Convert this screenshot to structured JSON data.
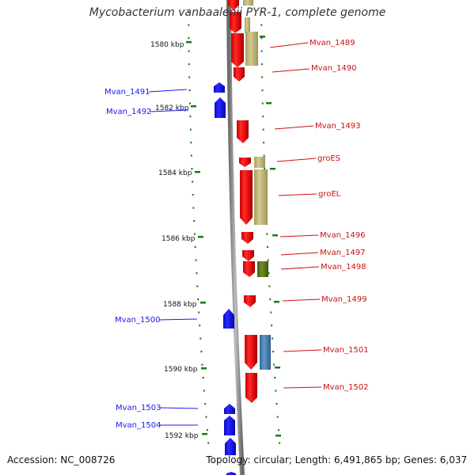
{
  "title": "Mycobacterium vanbaalenii PYR-1, complete genome",
  "footer": {
    "accession": "Accession: NC_008726",
    "topology": "Topology: circular; Length: 6,491,865 bp; Genes: 6,037"
  },
  "colors": {
    "forward_gene": "#ee1111",
    "reverse_gene": "#1a1aee",
    "left_label": "#1a1aee",
    "right_label": "#cc1111",
    "feature_tan": "#bdb57a",
    "feature_green": "#5a7a1a",
    "feature_steel": "#4a7fb0",
    "tick": "#1a7a1a",
    "backbone": "#888888"
  },
  "scale": {
    "unit": "kbp",
    "labels": [
      "1580 kbp",
      "1582 kbp",
      "1584 kbp",
      "1586 kbp",
      "1588 kbp",
      "1590 kbp",
      "1592 kbp"
    ]
  },
  "genes_right": [
    {
      "name": "Mvan_1489"
    },
    {
      "name": "Mvan_1490"
    },
    {
      "name": "Mvan_1493"
    },
    {
      "name": "groES"
    },
    {
      "name": "groEL"
    },
    {
      "name": "Mvan_1496"
    },
    {
      "name": "Mvan_1497"
    },
    {
      "name": "Mvan_1498"
    },
    {
      "name": "Mvan_1499"
    },
    {
      "name": "Mvan_1501"
    },
    {
      "name": "Mvan_1502"
    }
  ],
  "genes_left": [
    {
      "name": "Mvan_1491"
    },
    {
      "name": "Mvan_1492"
    },
    {
      "name": "Mvan_1500"
    },
    {
      "name": "Mvan_1503"
    },
    {
      "name": "Mvan_1504"
    }
  ]
}
